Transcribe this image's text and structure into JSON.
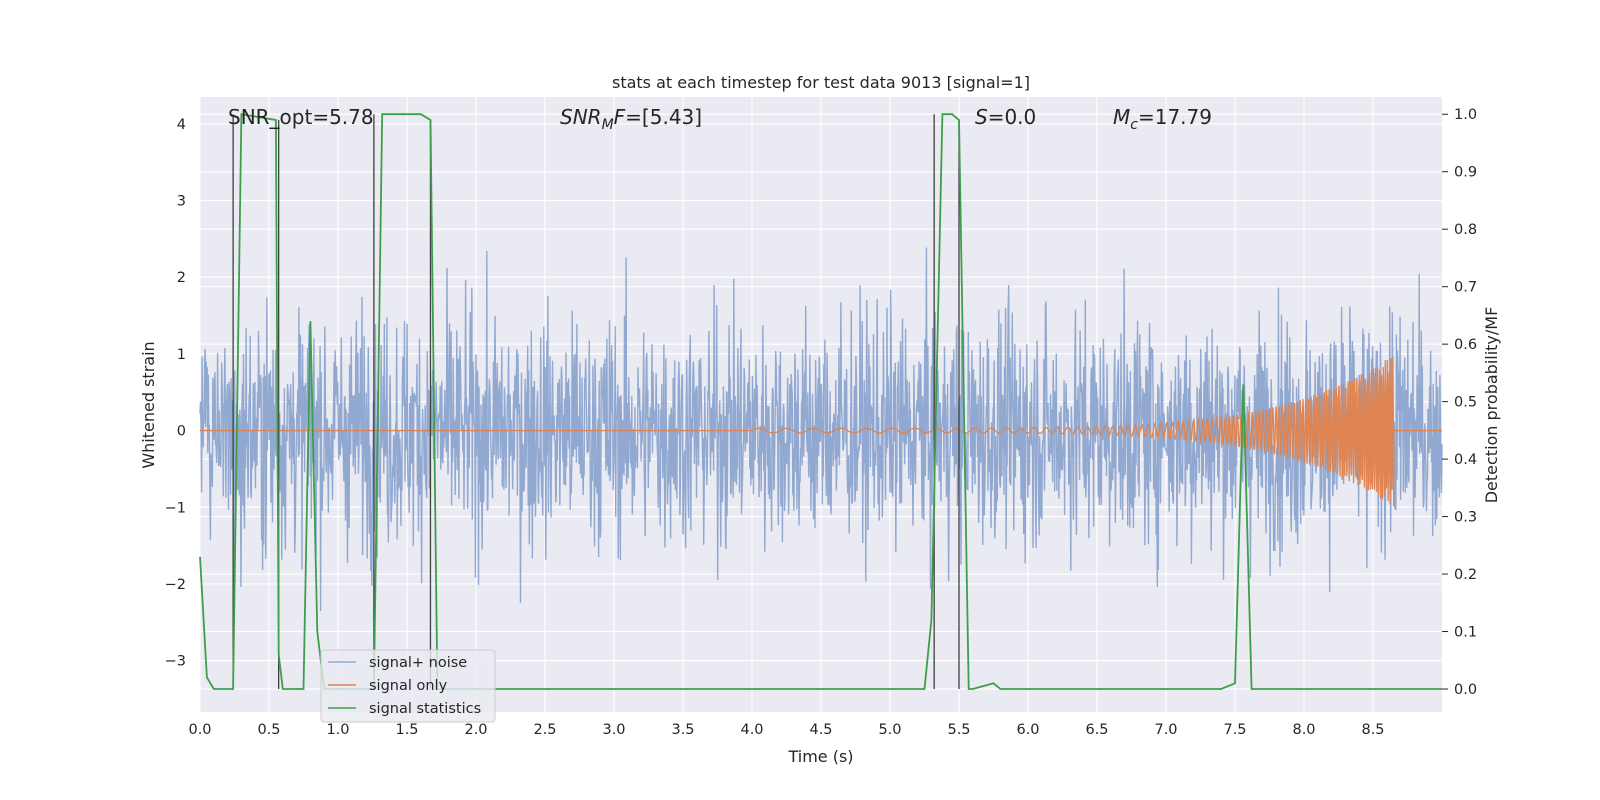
{
  "chart_data": {
    "type": "line",
    "title": "stats at each timestep for test data 9013 [signal=1]",
    "xlabel": "Time (s)",
    "ylabel_left": "Whitened strain",
    "ylabel_right": "Detection probability/MF",
    "xlim": [
      0.0,
      9.0
    ],
    "ylim_left": [
      -3.67,
      4.35
    ],
    "ylim_right": [
      -0.04,
      1.03
    ],
    "x_ticks": [
      "0.0",
      "0.5",
      "1.0",
      "1.5",
      "2.0",
      "2.5",
      "3.0",
      "3.5",
      "4.0",
      "4.5",
      "5.0",
      "5.5",
      "6.0",
      "6.5",
      "7.0",
      "7.5",
      "8.0",
      "8.5"
    ],
    "y_ticks_left": [
      "−3",
      "−2",
      "−1",
      "0",
      "1",
      "2",
      "3",
      "4"
    ],
    "y_ticks_right": [
      "0.0",
      "0.1",
      "0.2",
      "0.3",
      "0.4",
      "0.5",
      "0.6",
      "0.7",
      "0.8",
      "0.9",
      "1.0"
    ],
    "grid": true,
    "legend_position": "bottom-left",
    "annotations": {
      "snr_opt": "SNR_opt=5.78",
      "snr_mf_italic": "SNR",
      "snr_mf_sub": "M",
      "snr_mf_italic2": "F",
      "snr_mf_value": "=[5.43]",
      "s_italic": "S",
      "s_value": "=0.0",
      "mc_italic": "M",
      "mc_sub": "c",
      "mc_value": "=17.79"
    },
    "colors": {
      "noise": "#91a8d0",
      "signal": "#dd8452",
      "stats": "#3e9e4c",
      "vlines": "#404040",
      "plot_bg": "#eaeaf2"
    },
    "series": [
      {
        "name": "signal+ noise",
        "axis": "left",
        "description": "whitened strain, noisy, amplitude roughly within [-3.2, 3.9]"
      },
      {
        "name": "signal only",
        "axis": "left",
        "chirp": {
          "start": 4.0,
          "end": 8.65,
          "peak_amplitude": 1.0
        }
      },
      {
        "name": "signal statistics",
        "axis": "right",
        "x": [
          0.0,
          0.05,
          0.1,
          0.2,
          0.24,
          0.3,
          0.55,
          0.57,
          0.6,
          0.7,
          0.75,
          0.8,
          0.85,
          0.9,
          1.0,
          1.2,
          1.26,
          1.32,
          1.35,
          1.6,
          1.67,
          1.72,
          1.8,
          2.0,
          5.25,
          5.3,
          5.38,
          5.45,
          5.5,
          5.57,
          5.6,
          5.75,
          5.8,
          7.4,
          7.5,
          7.56,
          7.62,
          7.7,
          9.0
        ],
        "values": [
          0.23,
          0.02,
          0.0,
          0.0,
          0.0,
          1.0,
          0.99,
          0.06,
          0.0,
          0.0,
          0.0,
          0.64,
          0.1,
          0.0,
          0.0,
          0.0,
          0.0,
          1.0,
          1.0,
          1.0,
          0.99,
          0.0,
          0.0,
          0.0,
          0.0,
          0.12,
          1.0,
          1.0,
          0.99,
          0.0,
          0.0,
          0.01,
          0.0,
          0.0,
          0.01,
          0.53,
          0.0,
          0.0,
          0.0
        ]
      }
    ],
    "vertical_lines": [
      {
        "x": 0.24,
        "ymin": 0.0,
        "ymax": 1.0
      },
      {
        "x": 0.57,
        "ymin": 0.0,
        "ymax": 0.99
      },
      {
        "x": 1.26,
        "ymin": 0.0,
        "ymax": 1.0
      },
      {
        "x": 1.67,
        "ymin": 0.0,
        "ymax": 0.99
      },
      {
        "x": 5.32,
        "ymin": 0.0,
        "ymax": 1.0
      },
      {
        "x": 5.5,
        "ymin": 0.0,
        "ymax": 0.99
      }
    ]
  }
}
